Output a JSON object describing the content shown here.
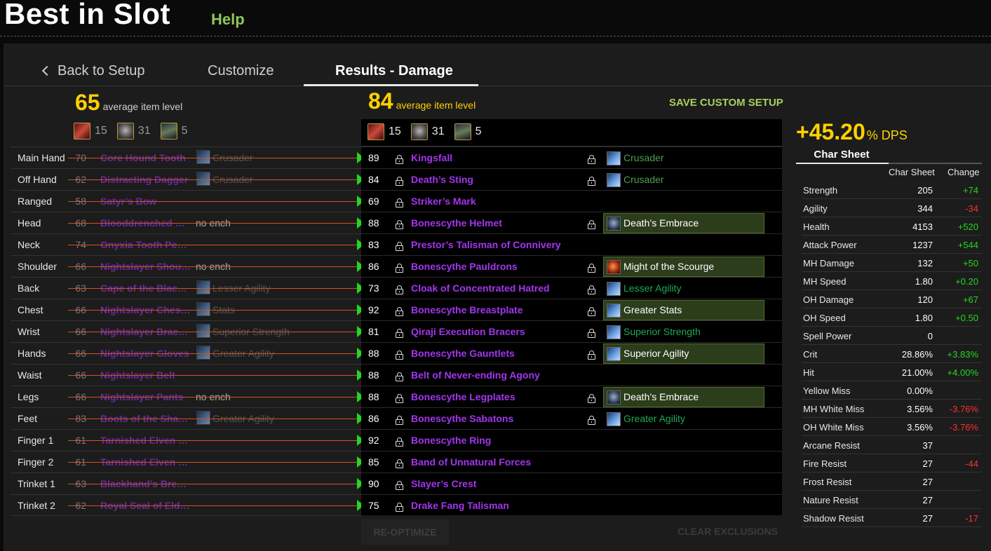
{
  "app": {
    "title": "Best in Slot",
    "help": "Help"
  },
  "tabs": {
    "back": "Back to Setup",
    "customize": "Customize",
    "results": "Results - Damage"
  },
  "current": {
    "avg_ilvl": "65",
    "avg_label": "average item level",
    "gems": {
      "red": "15",
      "gray": "31",
      "dark": "5"
    }
  },
  "optimized": {
    "avg_ilvl": "84",
    "avg_label": "average item level",
    "gems": {
      "red": "15",
      "gray": "31",
      "dark": "5"
    }
  },
  "save_setup": "SAVE CUSTOM SETUP",
  "slots": [
    {
      "slot": "Main Hand",
      "old_ilvl": "70",
      "old_item": "Core Hound Tooth",
      "old_ench": "Crusader",
      "new_ilvl": "89",
      "new_item": "Kingsfall",
      "new_ench": "Crusader"
    },
    {
      "slot": "Off Hand",
      "old_ilvl": "62",
      "old_item": "Distracting Dagger",
      "old_ench": "Crusader",
      "new_ilvl": "84",
      "new_item": "Death’s Sting",
      "new_ench": "Crusader"
    },
    {
      "slot": "Ranged",
      "old_ilvl": "58",
      "old_item": "Satyr’s Bow",
      "old_ench": "",
      "new_ilvl": "69",
      "new_item": "Striker’s Mark",
      "new_ench": ""
    },
    {
      "slot": "Head",
      "old_ilvl": "68",
      "old_item": "Blooddrenched …",
      "old_ench": "no ench",
      "new_ilvl": "88",
      "new_item": "Bonescythe Helmet",
      "new_ench": "Death’s Embrace"
    },
    {
      "slot": "Neck",
      "old_ilvl": "74",
      "old_item": "Onyxia Tooth Pen…",
      "old_ench": "",
      "new_ilvl": "83",
      "new_item": "Prestor’s Talisman of Connivery",
      "new_ench": ""
    },
    {
      "slot": "Shoulder",
      "old_ilvl": "66",
      "old_item": "Nightslayer Shou…",
      "old_ench": "no ench",
      "new_ilvl": "86",
      "new_item": "Bonescythe Pauldrons",
      "new_ench": "Might of the Scourge"
    },
    {
      "slot": "Back",
      "old_ilvl": "63",
      "old_item": "Cape of the Black …",
      "old_ench": "Lesser Agility",
      "new_ilvl": "73",
      "new_item": "Cloak of Concentrated Hatred",
      "new_ench": "Lesser Agility"
    },
    {
      "slot": "Chest",
      "old_ilvl": "66",
      "old_item": "Nightslayer Ches…",
      "old_ench": "Stats",
      "new_ilvl": "92",
      "new_item": "Bonescythe Breastplate",
      "new_ench": "Greater Stats"
    },
    {
      "slot": "Wrist",
      "old_ilvl": "66",
      "old_item": "Nightslayer Brac…",
      "old_ench": "Superior Strength",
      "new_ilvl": "81",
      "new_item": "Qiraji Execution Bracers",
      "new_ench": "Superior Strength"
    },
    {
      "slot": "Hands",
      "old_ilvl": "66",
      "old_item": "Nightslayer Gloves",
      "old_ench": "Greater Agility",
      "new_ilvl": "88",
      "new_item": "Bonescythe Gauntlets",
      "new_ench": "Superior Agility"
    },
    {
      "slot": "Waist",
      "old_ilvl": "66",
      "old_item": "Nightslayer Belt",
      "old_ench": "",
      "new_ilvl": "88",
      "new_item": "Belt of Never-ending Agony",
      "new_ench": ""
    },
    {
      "slot": "Legs",
      "old_ilvl": "66",
      "old_item": "Nightslayer Pants",
      "old_ench": "no ench",
      "new_ilvl": "88",
      "new_item": "Bonescythe Legplates",
      "new_ench": "Death’s Embrace"
    },
    {
      "slot": "Feet",
      "old_ilvl": "83",
      "old_item": "Boots of the Shad…",
      "old_ench": "Greater Agility",
      "new_ilvl": "86",
      "new_item": "Bonescythe Sabatons",
      "new_ench": "Greater Agility"
    },
    {
      "slot": "Finger 1",
      "old_ilvl": "61",
      "old_item": "Tarnished Elven R…",
      "old_ench": "",
      "new_ilvl": "92",
      "new_item": "Bonescythe Ring",
      "new_ench": ""
    },
    {
      "slot": "Finger 2",
      "old_ilvl": "61",
      "old_item": "Tarnished Elven R…",
      "old_ench": "",
      "new_ilvl": "85",
      "new_item": "Band of Unnatural Forces",
      "new_ench": ""
    },
    {
      "slot": "Trinket 1",
      "old_ilvl": "63",
      "old_item": "Blackhand’s Brea…",
      "old_ench": "",
      "new_ilvl": "90",
      "new_item": "Slayer’s Crest",
      "new_ench": ""
    },
    {
      "slot": "Trinket 2",
      "old_ilvl": "62",
      "old_item": "Royal Seal of Eldr…",
      "old_ench": "",
      "new_ilvl": "75",
      "new_item": "Drake Fang Talisman",
      "new_ench": ""
    }
  ],
  "buttons": {
    "reoptimize": "RE-OPTIMIZE",
    "clear_exclusions": "CLEAR EXCLUSIONS"
  },
  "dps": {
    "value": "+45.20",
    "label": "% DPS"
  },
  "char_sheet": {
    "tab": "Char Sheet",
    "col_value": "Char Sheet",
    "col_change": "Change",
    "stats": [
      {
        "name": "Strength",
        "value": "205",
        "change": "+74"
      },
      {
        "name": "Agility",
        "value": "344",
        "change": "-34"
      },
      {
        "name": "Health",
        "value": "4153",
        "change": "+520"
      },
      {
        "name": "Attack Power",
        "value": "1237",
        "change": "+544"
      },
      {
        "name": "MH Damage",
        "value": "132",
        "change": "+50"
      },
      {
        "name": "MH Speed",
        "value": "1.80",
        "change": "+0.20"
      },
      {
        "name": "OH Damage",
        "value": "120",
        "change": "+67"
      },
      {
        "name": "OH Speed",
        "value": "1.80",
        "change": "+0.50"
      },
      {
        "name": "Spell Power",
        "value": "0",
        "change": ""
      },
      {
        "name": "Crit",
        "value": "28.86%",
        "change": "+3.83%"
      },
      {
        "name": "Hit",
        "value": "21.00%",
        "change": "+4.00%"
      },
      {
        "name": "Yellow Miss",
        "value": "0.00%",
        "change": ""
      },
      {
        "name": "MH White Miss",
        "value": "3.56%",
        "change": "-3.76%"
      },
      {
        "name": "OH White Miss",
        "value": "3.56%",
        "change": "-3.76%"
      },
      {
        "name": "Arcane Resist",
        "value": "37",
        "change": ""
      },
      {
        "name": "Fire Resist",
        "value": "27",
        "change": "-44"
      },
      {
        "name": "Frost Resist",
        "value": "27",
        "change": ""
      },
      {
        "name": "Nature Resist",
        "value": "27",
        "change": ""
      },
      {
        "name": "Shadow Resist",
        "value": "27",
        "change": "-17"
      }
    ]
  }
}
